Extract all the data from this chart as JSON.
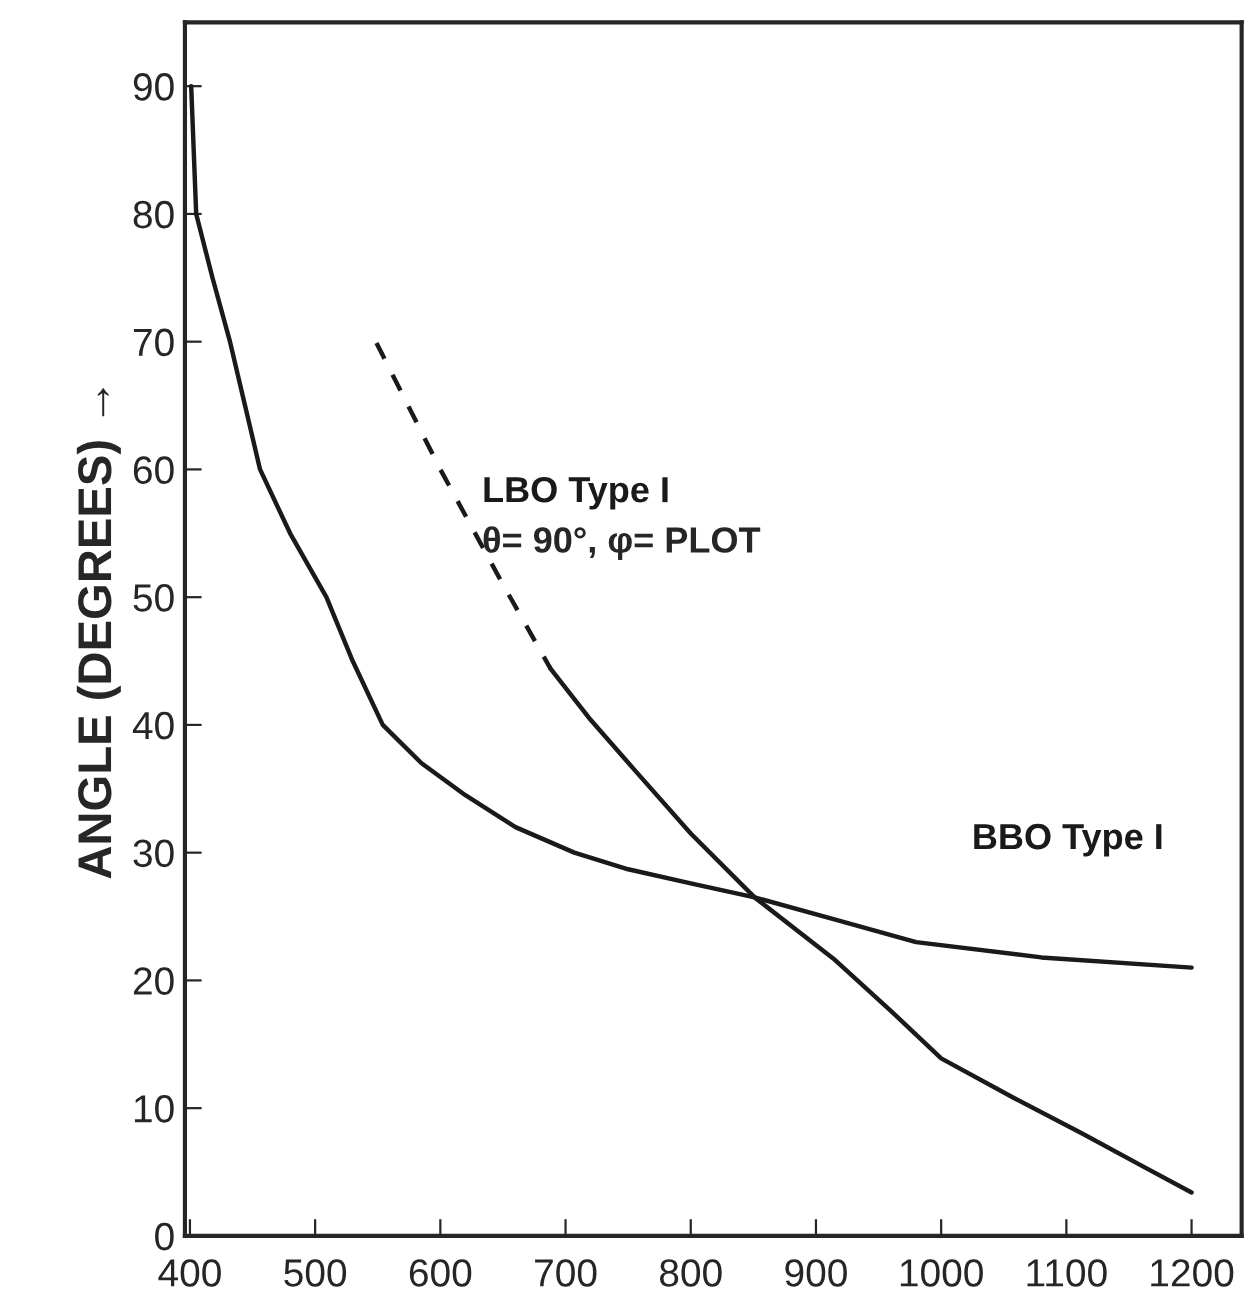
{
  "chart_data": {
    "type": "line",
    "ylabel": "ANGLE (DEGREES) →",
    "xlim": [
      396,
      1240
    ],
    "ylim": [
      0,
      95
    ],
    "xticks": [
      400,
      500,
      600,
      700,
      800,
      900,
      1000,
      1100,
      1200
    ],
    "yticks": [
      0,
      10,
      20,
      30,
      40,
      50,
      60,
      70,
      80,
      90
    ],
    "grid": false,
    "legend": false,
    "series": [
      {
        "name": "BBO Type I",
        "color": "#1a1a1a",
        "line_style": "solid",
        "x": [
          401,
          405,
          418,
          432,
          444,
          456,
          480,
          509,
          530,
          554,
          585,
          620,
          660,
          707,
          750,
          800,
          851,
          914,
          980,
          1080,
          1200
        ],
        "values": [
          90,
          80,
          75,
          70,
          65,
          60,
          55,
          50,
          45,
          40,
          37,
          34.5,
          32,
          30,
          28.7,
          27.6,
          26.5,
          24.8,
          23,
          21.8,
          21
        ]
      },
      {
        "name": "LBO Type I",
        "color": "#1a1a1a",
        "line_style": "dashed",
        "x": [
          549,
          600,
          650,
          688
        ],
        "values": [
          69.9,
          60,
          51,
          44.4
        ]
      },
      {
        "color": "#1a1a1a",
        "line_style": "solid",
        "x": [
          688,
          720,
          754,
          800,
          851,
          914,
          960,
          1000,
          1060,
          1113,
          1160,
          1200
        ],
        "values": [
          44.4,
          40.4,
          36.6,
          31.5,
          26.5,
          21.7,
          17.6,
          13.9,
          10.7,
          8,
          5.5,
          3.4
        ]
      }
    ],
    "annotations": [
      "θ= 90°, φ= PLOT"
    ]
  }
}
